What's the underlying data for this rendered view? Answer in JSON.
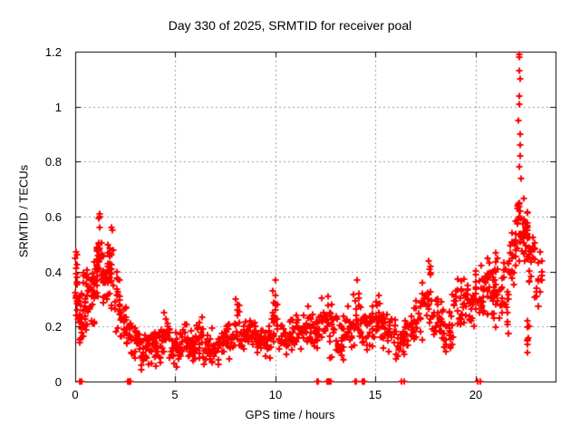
{
  "window": {
    "title": "Day 330 of 2025, SRMTID for receiver poal"
  },
  "chart_data": {
    "type": "scatter",
    "title": "Day 330 of 2025, SRMTID for receiver poal",
    "xlabel": "GPS time / hours",
    "ylabel": "SRMTID / TECUs",
    "xlim": [
      0,
      24
    ],
    "ylim": [
      0,
      1.2
    ],
    "xtick_values": [
      0,
      5,
      10,
      15,
      20
    ],
    "xtick_labels": [
      "0",
      "5",
      "10",
      "15",
      "20"
    ],
    "ytick_values": [
      0,
      0.2,
      0.4,
      0.6,
      0.8,
      1,
      1.2
    ],
    "ytick_labels": [
      "0",
      "0.2",
      "0.4",
      "0.6",
      "0.8",
      "1",
      "1.2"
    ],
    "grid": true,
    "legend": "none",
    "marker": "plus",
    "marker_color": "#ff0000",
    "axis_color": "#000000",
    "grid_color": "#9a9a9a",
    "background": "#ffffff",
    "note": "Dense ~30s-cadence scatter. density_bands give the envelope [xStartHr, xEndHr, nPoints, yMinTECU, yMaxTECU]; outlier_points and zero_points are individually visible markers.",
    "column_width_hours": 0.08,
    "seed": 11,
    "density_bands": [
      [
        0.0,
        0.12,
        16,
        0.2,
        0.47
      ],
      [
        0.12,
        0.45,
        26,
        0.13,
        0.33
      ],
      [
        0.35,
        0.62,
        6,
        0.34,
        0.45
      ],
      [
        0.45,
        0.75,
        20,
        0.15,
        0.42
      ],
      [
        0.75,
        1.05,
        22,
        0.18,
        0.47
      ],
      [
        1.05,
        1.35,
        30,
        0.3,
        0.61
      ],
      [
        1.35,
        1.6,
        20,
        0.26,
        0.5
      ],
      [
        1.6,
        1.95,
        26,
        0.22,
        0.56
      ],
      [
        1.95,
        2.25,
        20,
        0.16,
        0.45
      ],
      [
        2.25,
        2.55,
        18,
        0.12,
        0.32
      ],
      [
        2.55,
        2.85,
        16,
        0.07,
        0.26
      ],
      [
        2.85,
        3.25,
        20,
        0.07,
        0.22
      ],
      [
        3.25,
        3.6,
        20,
        0.04,
        0.18
      ],
      [
        3.6,
        4.0,
        22,
        0.06,
        0.23
      ],
      [
        4.0,
        4.4,
        22,
        0.05,
        0.2
      ],
      [
        4.4,
        4.75,
        20,
        0.07,
        0.26
      ],
      [
        4.75,
        5.2,
        24,
        0.05,
        0.19
      ],
      [
        5.2,
        5.6,
        22,
        0.06,
        0.22
      ],
      [
        5.6,
        6.0,
        22,
        0.05,
        0.2
      ],
      [
        6.0,
        6.4,
        22,
        0.06,
        0.27
      ],
      [
        6.4,
        6.8,
        22,
        0.04,
        0.18
      ],
      [
        6.8,
        7.2,
        22,
        0.05,
        0.2
      ],
      [
        7.2,
        7.6,
        20,
        0.08,
        0.22
      ],
      [
        7.6,
        8.0,
        20,
        0.08,
        0.25
      ],
      [
        8.0,
        8.3,
        16,
        0.1,
        0.32
      ],
      [
        8.3,
        8.7,
        20,
        0.08,
        0.24
      ],
      [
        8.7,
        9.0,
        16,
        0.1,
        0.28
      ],
      [
        9.0,
        9.4,
        20,
        0.08,
        0.25
      ],
      [
        9.4,
        9.8,
        20,
        0.07,
        0.22
      ],
      [
        9.8,
        10.15,
        20,
        0.1,
        0.35
      ],
      [
        10.15,
        10.6,
        22,
        0.08,
        0.22
      ],
      [
        10.6,
        11.0,
        20,
        0.1,
        0.24
      ],
      [
        11.0,
        11.45,
        22,
        0.1,
        0.26
      ],
      [
        11.45,
        11.9,
        22,
        0.12,
        0.28
      ],
      [
        11.9,
        12.3,
        20,
        0.1,
        0.28
      ],
      [
        12.3,
        12.7,
        20,
        0.12,
        0.33
      ],
      [
        12.7,
        13.1,
        20,
        0.06,
        0.3
      ],
      [
        13.1,
        13.45,
        18,
        0.03,
        0.25
      ],
      [
        13.45,
        13.85,
        20,
        0.1,
        0.28
      ],
      [
        13.85,
        14.3,
        22,
        0.12,
        0.36
      ],
      [
        14.3,
        14.75,
        22,
        0.1,
        0.3
      ],
      [
        14.75,
        15.2,
        22,
        0.12,
        0.32
      ],
      [
        15.2,
        15.6,
        20,
        0.1,
        0.3
      ],
      [
        15.6,
        16.0,
        20,
        0.1,
        0.26
      ],
      [
        16.0,
        16.45,
        22,
        0.06,
        0.24
      ],
      [
        16.45,
        16.9,
        22,
        0.1,
        0.26
      ],
      [
        16.9,
        17.3,
        20,
        0.12,
        0.3
      ],
      [
        17.3,
        17.9,
        28,
        0.12,
        0.44
      ],
      [
        17.9,
        18.4,
        24,
        0.12,
        0.32
      ],
      [
        18.4,
        18.9,
        24,
        0.06,
        0.34
      ],
      [
        18.9,
        19.4,
        24,
        0.15,
        0.38
      ],
      [
        19.4,
        19.9,
        26,
        0.18,
        0.4
      ],
      [
        19.9,
        20.4,
        28,
        0.2,
        0.43
      ],
      [
        20.4,
        20.9,
        28,
        0.22,
        0.47
      ],
      [
        20.9,
        21.3,
        26,
        0.15,
        0.5
      ],
      [
        21.3,
        21.7,
        26,
        0.08,
        0.52
      ],
      [
        21.7,
        22.05,
        24,
        0.28,
        0.62
      ],
      [
        22.05,
        22.3,
        20,
        0.42,
        0.72
      ],
      [
        22.3,
        22.65,
        28,
        0.4,
        0.7
      ],
      [
        22.55,
        22.7,
        8,
        0.08,
        0.25
      ],
      [
        22.65,
        23.0,
        20,
        0.3,
        0.55
      ],
      [
        23.0,
        23.35,
        14,
        0.22,
        0.5
      ]
    ],
    "outlier_points": [
      [
        0.02,
        0.45
      ],
      [
        0.05,
        0.47
      ],
      [
        0.08,
        0.46
      ],
      [
        1.18,
        0.595
      ],
      [
        1.2,
        0.61
      ],
      [
        1.22,
        0.6
      ],
      [
        1.82,
        0.56
      ],
      [
        1.85,
        0.55
      ],
      [
        10.02,
        0.37
      ],
      [
        14.1,
        0.37
      ],
      [
        17.65,
        0.44
      ],
      [
        17.75,
        0.42
      ],
      [
        22.16,
        0.95
      ],
      [
        22.17,
        1.13
      ],
      [
        22.18,
        1.19
      ],
      [
        22.2,
        1.18
      ],
      [
        22.19,
        1.04
      ],
      [
        22.21,
        1.01
      ],
      [
        22.22,
        1.1
      ],
      [
        22.23,
        0.86
      ],
      [
        22.24,
        0.9
      ],
      [
        22.25,
        0.82
      ],
      [
        22.2,
        0.78
      ],
      [
        22.26,
        0.74
      ],
      [
        23.25,
        0.47
      ],
      [
        23.3,
        0.44
      ]
    ],
    "zero_points": [
      0.22,
      0.3,
      2.62,
      2.66,
      2.7,
      2.74,
      12.08,
      12.14,
      12.58,
      12.64,
      12.7,
      12.76,
      13.98,
      14.04,
      14.34,
      14.4,
      14.46,
      16.32,
      16.42,
      20.12,
      20.22
    ]
  }
}
